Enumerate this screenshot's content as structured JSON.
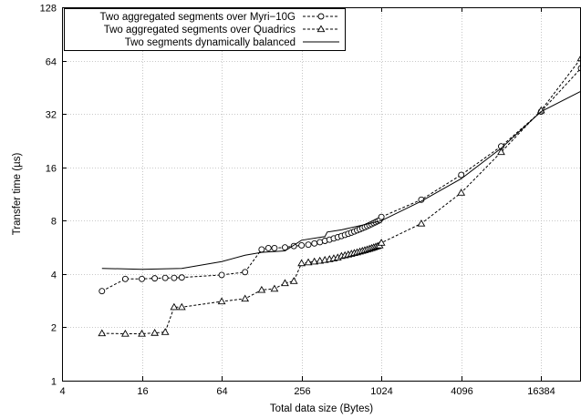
{
  "chart_data": {
    "type": "line",
    "xlabel": "Total data size (Bytes)",
    "ylabel": "Transfer time (µs)",
    "x_scale": "log2",
    "y_scale": "log2",
    "xlim": [
      4,
      32768
    ],
    "ylim": [
      1,
      128
    ],
    "x_ticks": [
      {
        "value": 4,
        "label": "4"
      },
      {
        "value": 16,
        "label": "16"
      },
      {
        "value": 64,
        "label": "64"
      },
      {
        "value": 256,
        "label": "256"
      },
      {
        "value": 1024,
        "label": "1024"
      },
      {
        "value": 4096,
        "label": "4096"
      },
      {
        "value": 16384,
        "label": "16384"
      }
    ],
    "y_ticks": [
      {
        "value": 1,
        "label": "1"
      },
      {
        "value": 2,
        "label": "2"
      },
      {
        "value": 4,
        "label": "4"
      },
      {
        "value": 8,
        "label": "8"
      },
      {
        "value": 16,
        "label": "16"
      },
      {
        "value": 32,
        "label": "32"
      },
      {
        "value": 64,
        "label": "64"
      },
      {
        "value": 128,
        "label": "128"
      }
    ],
    "grid": true,
    "legend_position": "top-left",
    "series": [
      {
        "name": "Two aggregated segments over Myri−10G",
        "style": "dashed",
        "marker": "circle",
        "color": "#000000",
        "points": [
          [
            8,
            3.2
          ],
          [
            12,
            3.75
          ],
          [
            16,
            3.75
          ],
          [
            20,
            3.78
          ],
          [
            24,
            3.8
          ],
          [
            28,
            3.8
          ],
          [
            32,
            3.82
          ],
          [
            64,
            3.95
          ],
          [
            96,
            4.1
          ],
          [
            128,
            5.5
          ],
          [
            144,
            5.6
          ],
          [
            160,
            5.6
          ],
          [
            192,
            5.65
          ],
          [
            224,
            5.75
          ],
          [
            256,
            5.8
          ],
          [
            288,
            5.85
          ],
          [
            320,
            5.95
          ],
          [
            352,
            6.05
          ],
          [
            384,
            6.15
          ],
          [
            416,
            6.25
          ],
          [
            448,
            6.35
          ],
          [
            480,
            6.45
          ],
          [
            512,
            6.55
          ],
          [
            544,
            6.65
          ],
          [
            576,
            6.75
          ],
          [
            608,
            6.85
          ],
          [
            640,
            6.95
          ],
          [
            672,
            7.05
          ],
          [
            704,
            7.15
          ],
          [
            736,
            7.25
          ],
          [
            768,
            7.35
          ],
          [
            800,
            7.45
          ],
          [
            832,
            7.55
          ],
          [
            864,
            7.65
          ],
          [
            896,
            7.75
          ],
          [
            928,
            7.85
          ],
          [
            960,
            7.95
          ],
          [
            992,
            8.05
          ],
          [
            1024,
            8.4
          ],
          [
            2048,
            10.5
          ],
          [
            4096,
            14.5
          ],
          [
            8192,
            21
          ],
          [
            16384,
            33
          ],
          [
            32768,
            58
          ]
        ]
      },
      {
        "name": "Two aggregated segments over Quadrics",
        "style": "dashed",
        "marker": "triangle",
        "color": "#000000",
        "points": [
          [
            8,
            1.85
          ],
          [
            12,
            1.84
          ],
          [
            16,
            1.84
          ],
          [
            20,
            1.86
          ],
          [
            24,
            1.88
          ],
          [
            28,
            2.6
          ],
          [
            32,
            2.6
          ],
          [
            64,
            2.8
          ],
          [
            96,
            2.9
          ],
          [
            128,
            3.25
          ],
          [
            160,
            3.3
          ],
          [
            192,
            3.55
          ],
          [
            224,
            3.65
          ],
          [
            256,
            4.6
          ],
          [
            288,
            4.65
          ],
          [
            320,
            4.7
          ],
          [
            352,
            4.75
          ],
          [
            384,
            4.8
          ],
          [
            416,
            4.85
          ],
          [
            448,
            4.9
          ],
          [
            480,
            4.95
          ],
          [
            512,
            5.05
          ],
          [
            544,
            5.1
          ],
          [
            576,
            5.15
          ],
          [
            608,
            5.2
          ],
          [
            640,
            5.25
          ],
          [
            672,
            5.3
          ],
          [
            704,
            5.35
          ],
          [
            736,
            5.4
          ],
          [
            768,
            5.45
          ],
          [
            800,
            5.5
          ],
          [
            832,
            5.55
          ],
          [
            864,
            5.6
          ],
          [
            896,
            5.65
          ],
          [
            928,
            5.7
          ],
          [
            960,
            5.75
          ],
          [
            992,
            5.8
          ],
          [
            1024,
            6.0
          ],
          [
            2048,
            7.7
          ],
          [
            4096,
            11.5
          ],
          [
            8192,
            19.5
          ],
          [
            16384,
            33.5
          ],
          [
            32768,
            66
          ]
        ]
      },
      {
        "name": "Two segments dynamically balanced",
        "style": "solid",
        "marker": "none",
        "color": "#000000",
        "points": [
          [
            8,
            4.3
          ],
          [
            16,
            4.25
          ],
          [
            32,
            4.3
          ],
          [
            64,
            4.7
          ],
          [
            96,
            5.1
          ],
          [
            128,
            5.3
          ],
          [
            192,
            5.4
          ],
          [
            256,
            6.2
          ],
          [
            384,
            6.5
          ],
          [
            400,
            6.9
          ],
          [
            512,
            7.1
          ],
          [
            768,
            7.6
          ],
          [
            1024,
            8.0
          ],
          [
            2048,
            10.3
          ],
          [
            4096,
            13.8
          ],
          [
            8192,
            20.5
          ],
          [
            16384,
            33
          ],
          [
            32768,
            43
          ]
        ]
      }
    ]
  }
}
